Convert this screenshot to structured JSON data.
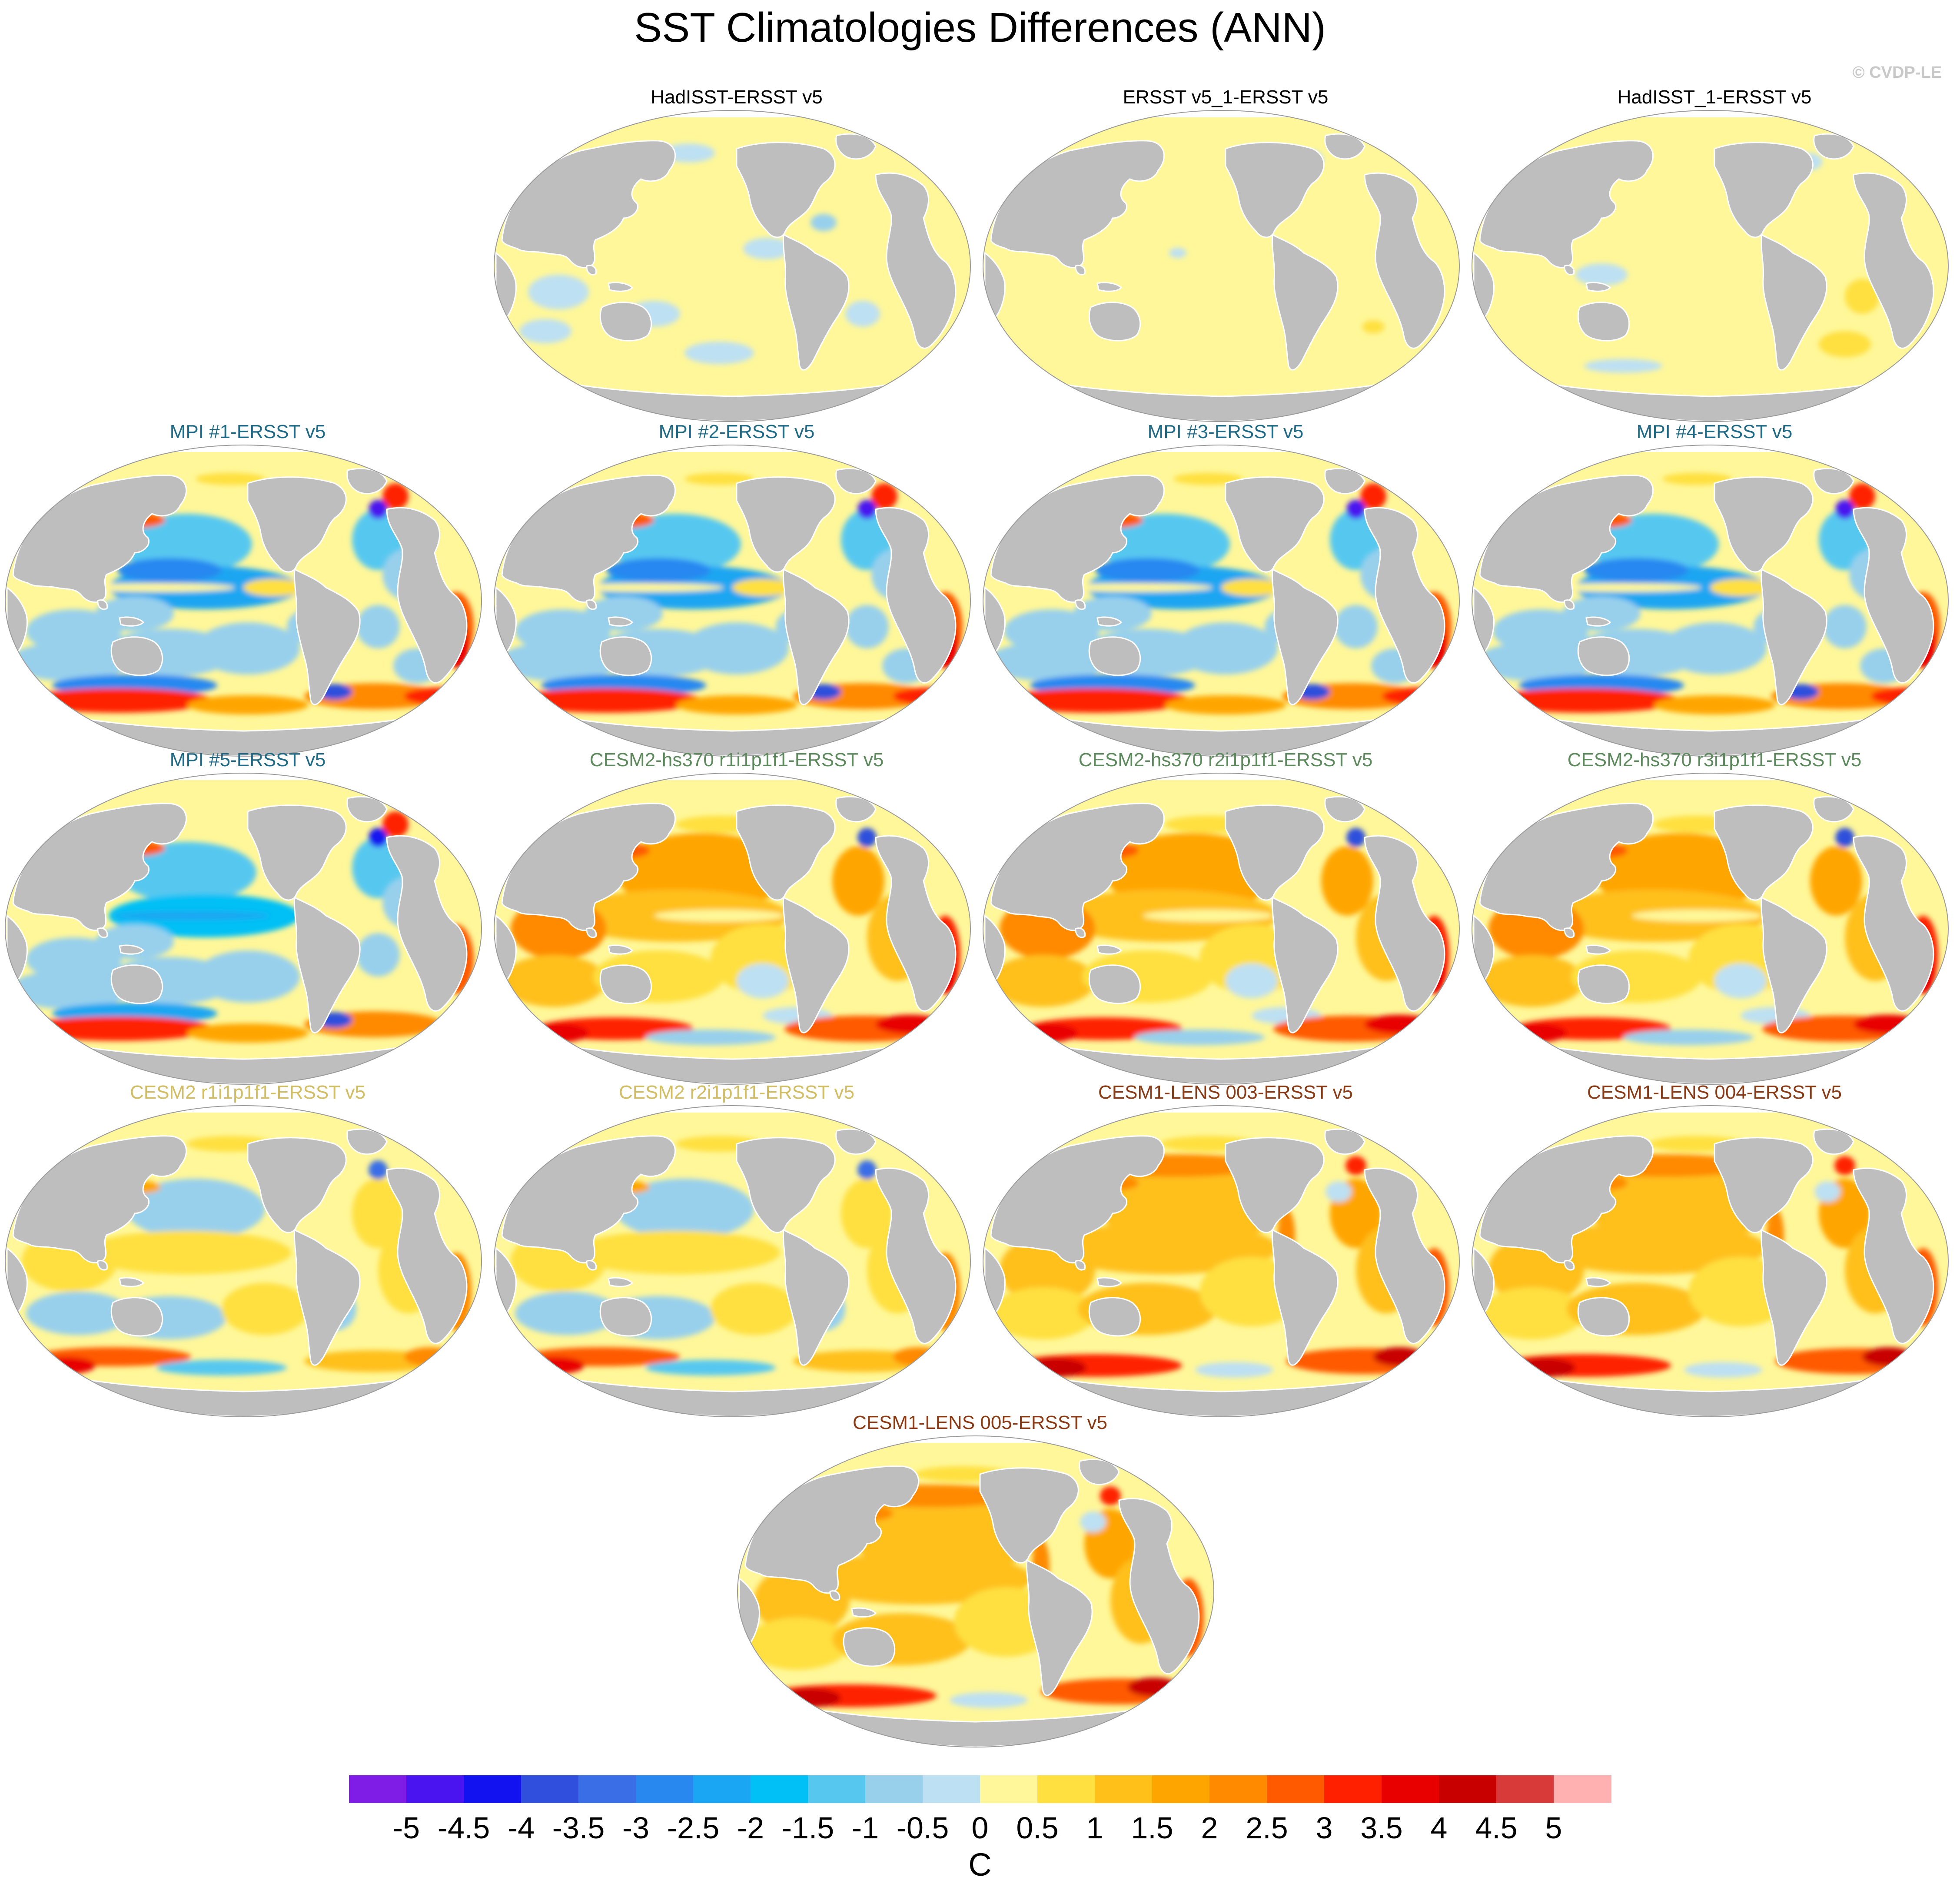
{
  "title": "SST Climatologies Differences (ANN)",
  "credit": "© CVDP-LE",
  "colors": {
    "land": "#bebebe",
    "ocean_zero": "#fff799",
    "coast": "#ffffff"
  },
  "panels": [
    {
      "title": "HadISST-ERSST v5",
      "title_color": "#000000",
      "pattern": "obs_a"
    },
    {
      "title": "ERSST v5_1-ERSST v5",
      "title_color": "#000000",
      "pattern": "obs_b"
    },
    {
      "title": "HadISST_1-ERSST v5",
      "title_color": "#000000",
      "pattern": "obs_c"
    },
    {
      "title": "MPI #1-ERSST v5",
      "title_color": "#1f6a86",
      "pattern": "mpi"
    },
    {
      "title": "MPI #2-ERSST v5",
      "title_color": "#1f6a86",
      "pattern": "mpi"
    },
    {
      "title": "MPI #3-ERSST v5",
      "title_color": "#1f6a86",
      "pattern": "mpi"
    },
    {
      "title": "MPI #4-ERSST v5",
      "title_color": "#1f6a86",
      "pattern": "mpi"
    },
    {
      "title": "MPI #5-ERSST v5",
      "title_color": "#1f6a86",
      "pattern": "mpi5"
    },
    {
      "title": "CESM2-hs370 r1i1p1f1-ERSST v5",
      "title_color": "#5c8a5c",
      "pattern": "hs370"
    },
    {
      "title": "CESM2-hs370 r2i1p1f1-ERSST v5",
      "title_color": "#5c8a5c",
      "pattern": "hs370"
    },
    {
      "title": "CESM2-hs370 r3i1p1f1-ERSST v5",
      "title_color": "#5c8a5c",
      "pattern": "hs370"
    },
    {
      "title": "CESM2 r1i1p1f1-ERSST v5",
      "title_color": "#d2bd62",
      "pattern": "cesm2"
    },
    {
      "title": "CESM2 r2i1p1f1-ERSST v5",
      "title_color": "#d2bd62",
      "pattern": "cesm2"
    },
    {
      "title": "CESM1-LENS 003-ERSST v5",
      "title_color": "#8a3a14",
      "pattern": "lens"
    },
    {
      "title": "CESM1-LENS 004-ERSST v5",
      "title_color": "#8a3a14",
      "pattern": "lens"
    },
    {
      "title": "CESM1-LENS 005-ERSST v5",
      "title_color": "#8a3a14",
      "pattern": "lens"
    }
  ],
  "colorbar": {
    "units": "C",
    "labels": [
      "-5",
      "-4.5",
      "-4",
      "-3.5",
      "-3",
      "-2.5",
      "-2",
      "-1.5",
      "-1",
      "-0.5",
      "0",
      "0.5",
      "1",
      "1.5",
      "2",
      "2.5",
      "3",
      "3.5",
      "4",
      "4.5",
      "5"
    ],
    "colors": [
      "#7f1de6",
      "#4a14f0",
      "#1212f0",
      "#2f4fdc",
      "#3a6ee6",
      "#2888f0",
      "#1aa6f2",
      "#00c0f5",
      "#56c8f0",
      "#98d0ec",
      "#bde0f2",
      "#fff799",
      "#ffe040",
      "#ffc01a",
      "#ffa500",
      "#ff8a00",
      "#ff5a00",
      "#ff2000",
      "#e80000",
      "#c80000",
      "#d83a3a",
      "#ffb0b0"
    ]
  }
}
